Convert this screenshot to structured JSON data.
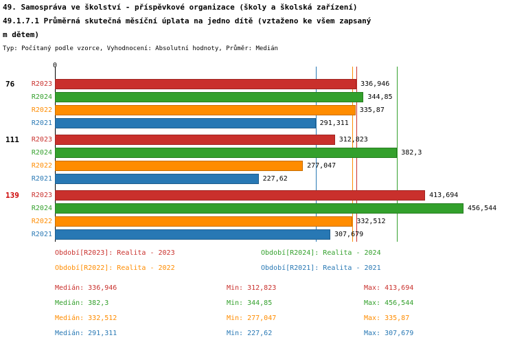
{
  "header": {
    "line1": "49. Samospráva ve školství - příspěvkové organizace (školy a školská zařízení)",
    "line2": "49.1.7.1 Průměrná skutečná měsíční úplata na jedno dítě (vztaženo ke všem zapsaný",
    "line3": "m dětem)",
    "meta": "Typ: Počítaný podle vzorce, Vyhodnocení: Absolutní hodnoty, Průměr: Medián"
  },
  "chart_data": {
    "type": "bar",
    "orientation": "horizontal",
    "title": "49. Samospráva ve školství - příspěvkové organizace (školy a školská zařízení)",
    "subtitle": "49.1.7.1 Průměrná skutečná měsíční úplata na jedno dítě (vztaženo ke všem zapsaným dětem)",
    "meta": "Typ: Počítaný podle vzorce, Vyhodnocení: Absolutní hodnoty, Průměr: Medián",
    "x_origin_label": "0",
    "xlim": [
      0,
      480
    ],
    "grid": false,
    "value_format": "czech-decimal-comma",
    "legend_position": "bottom",
    "highlight_color": "#cc0000",
    "series": [
      {
        "name": "R2023",
        "label": "Realita - 2023",
        "color": "#c9302c"
      },
      {
        "name": "R2024",
        "label": "Realita - 2024",
        "color": "#33a02c"
      },
      {
        "name": "R2022",
        "label": "Realita - 2022",
        "color": "#ff8c00"
      },
      {
        "name": "R2021",
        "label": "Realita - 2021",
        "color": "#2878b4"
      }
    ],
    "groups": [
      {
        "label": "76",
        "highlight": false,
        "bars": [
          {
            "series": "R2023",
            "value": 336.946,
            "label": "336,946"
          },
          {
            "series": "R2024",
            "value": 344.85,
            "label": "344,85"
          },
          {
            "series": "R2022",
            "value": 335.87,
            "label": "335,87"
          },
          {
            "series": "R2021",
            "value": 291.311,
            "label": "291,311"
          }
        ]
      },
      {
        "label": "111",
        "highlight": false,
        "bars": [
          {
            "series": "R2023",
            "value": 312.823,
            "label": "312,823"
          },
          {
            "series": "R2024",
            "value": 382.3,
            "label": "382,3"
          },
          {
            "series": "R2022",
            "value": 277.047,
            "label": "277,047"
          },
          {
            "series": "R2021",
            "value": 227.62,
            "label": "227,62"
          }
        ]
      },
      {
        "label": "139",
        "highlight": true,
        "bars": [
          {
            "series": "R2023",
            "value": 413.694,
            "label": "413,694"
          },
          {
            "series": "R2024",
            "value": 456.544,
            "label": "456,544"
          },
          {
            "series": "R2022",
            "value": 332.512,
            "label": "332,512"
          },
          {
            "series": "R2021",
            "value": 307.679,
            "label": "307,679"
          }
        ]
      }
    ],
    "medians": [
      {
        "series": "R2023",
        "value": 336.946
      },
      {
        "series": "R2024",
        "value": 382.3
      },
      {
        "series": "R2022",
        "value": 332.512
      },
      {
        "series": "R2021",
        "value": 291.311
      }
    ]
  },
  "legend": {
    "items": [
      {
        "series": "R2023",
        "text": "Období[R2023]: Realita - 2023"
      },
      {
        "series": "R2024",
        "text": "Období[R2024]: Realita - 2024"
      },
      {
        "series": "R2022",
        "text": "Období[R2022]: Realita - 2022"
      },
      {
        "series": "R2021",
        "text": "Období[R2021]: Realita - 2021"
      }
    ]
  },
  "stats_panel": {
    "rows": [
      {
        "series": "R2023",
        "median": "Medián: 336,946",
        "min": "Min: 312,823",
        "max": "Max: 413,694"
      },
      {
        "series": "R2024",
        "median": "Medián: 382,3",
        "min": "Min: 344,85",
        "max": "Max: 456,544"
      },
      {
        "series": "R2022",
        "median": "Medián: 332,512",
        "min": "Min: 277,047",
        "max": "Max: 335,87"
      },
      {
        "series": "R2021",
        "median": "Medián: 291,311",
        "min": "Min: 227,62",
        "max": "Max: 307,679"
      }
    ]
  }
}
